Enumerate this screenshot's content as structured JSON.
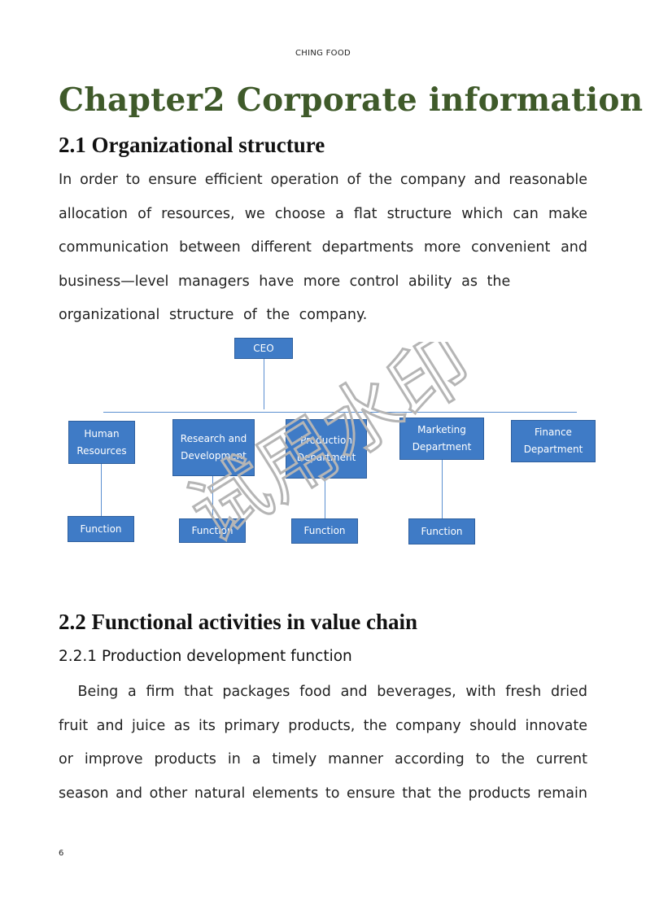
{
  "header": {
    "running_title": "CHING FOOD"
  },
  "chapter_title": "Chapter2 Corporate information",
  "section_2_1": {
    "heading": "2.1 Organizational structure",
    "lines": [
      "In order to ensure efficient operation of the company and reasonable",
      "allocation of resources, we choose a flat structure which can make",
      "communication between different departments more convenient and",
      "business—level managers have more control ability as the",
      "organizational structure of the company."
    ]
  },
  "org_chart": {
    "ceo": "CEO",
    "departments": [
      {
        "lines": [
          "Human",
          "Resources"
        ]
      },
      {
        "lines": [
          "Research and",
          "Development"
        ]
      },
      {
        "lines": [
          "Production",
          "Department"
        ]
      },
      {
        "lines": [
          "Marketing",
          "Department"
        ]
      },
      {
        "lines": [
          "Finance",
          "Department"
        ]
      }
    ],
    "functions": [
      "Function",
      "Function",
      "Function",
      "Function"
    ],
    "box_color": "#3f7bc6"
  },
  "watermark": {
    "text": "试用水印",
    "color": "#b5b5b5"
  },
  "section_2_2": {
    "heading": "2.2 Functional activities in value chain",
    "subheading": "2.2.1 Production development function",
    "lines": [
      "  Being a firm that packages food and beverages, with fresh dried",
      "fruit and juice as its primary products, the company should innovate",
      "or improve products in a timely manner according to the current",
      "season and other natural elements to ensure that the products remain"
    ]
  },
  "footer": {
    "page_number": "6"
  },
  "colors": {
    "chapter_title": "#3f5a2a",
    "text": "#222222"
  }
}
